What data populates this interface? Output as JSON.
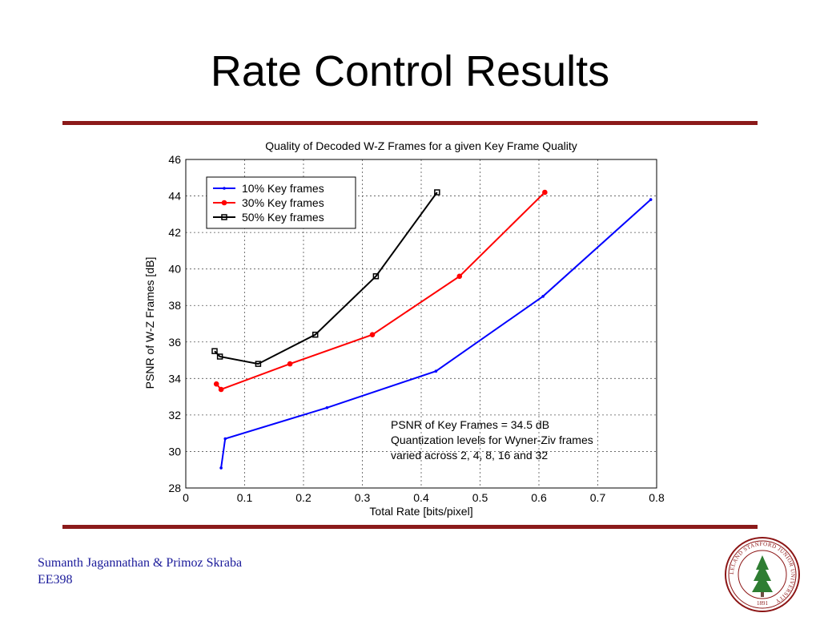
{
  "slide": {
    "title": "Rate Control Results",
    "footer_line1": "Sumanth Jagannathan & Primoz Skraba",
    "footer_line2": "EE398",
    "rule_color": "#8b1a1a",
    "footer_color": "#1a1a9a",
    "seal_icon": "stanford-university-seal-icon",
    "seal_text": "LELAND STANFORD JUNIOR UNIVERSITY",
    "seal_year": "1891"
  },
  "chart_data": {
    "type": "line",
    "title": "Quality of Decoded W-Z Frames for a given Key Frame Quality",
    "xlabel": "Total Rate [bits/pixel]",
    "ylabel": "PSNR of W-Z Frames [dB]",
    "xlim": [
      0,
      0.8
    ],
    "ylim": [
      28,
      46
    ],
    "xticks": [
      0,
      0.1,
      0.2,
      0.3,
      0.4,
      0.5,
      0.6,
      0.7,
      0.8
    ],
    "xtick_labels": [
      "0",
      "0.1",
      "0.2",
      "0.3",
      "0.4",
      "0.5",
      "0.6",
      "0.7",
      "0.8"
    ],
    "yticks": [
      28,
      30,
      32,
      34,
      36,
      38,
      40,
      42,
      44,
      46
    ],
    "ytick_labels": [
      "28",
      "30",
      "32",
      "34",
      "36",
      "38",
      "40",
      "42",
      "44",
      "46"
    ],
    "grid": true,
    "legend_position": "top-left",
    "series": [
      {
        "name": "10% Key frames",
        "color": "#0000ff",
        "marker": "dot",
        "x": [
          0.06,
          0.067,
          0.24,
          0.425,
          0.607,
          0.79
        ],
        "y": [
          29.1,
          30.7,
          32.4,
          34.4,
          38.5,
          43.8
        ]
      },
      {
        "name": "30% Key frames",
        "color": "#ff0000",
        "marker": "circle",
        "x": [
          0.052,
          0.06,
          0.177,
          0.317,
          0.465,
          0.61
        ],
        "y": [
          33.7,
          33.4,
          34.8,
          36.4,
          39.6,
          44.2
        ]
      },
      {
        "name": "50% Key frames",
        "color": "#000000",
        "marker": "square",
        "x": [
          0.049,
          0.058,
          0.123,
          0.22,
          0.323,
          0.427
        ],
        "y": [
          35.5,
          35.2,
          34.8,
          36.4,
          39.6,
          44.2
        ]
      }
    ],
    "annotation": [
      "PSNR of Key Frames = 34.5 dB",
      "Quantization levels for Wyner-Ziv frames",
      "varied across 2, 4, 8, 16 and 32"
    ]
  }
}
